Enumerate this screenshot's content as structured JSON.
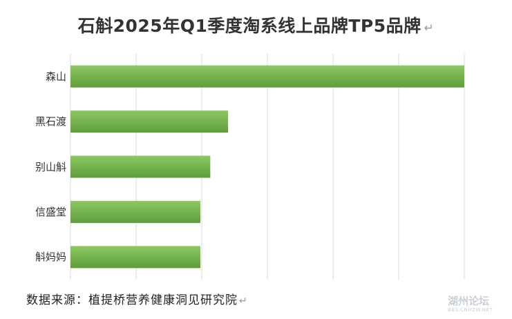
{
  "chart_data": {
    "type": "bar",
    "orientation": "horizontal",
    "title": "石斛2025年Q1季度淘系线上品牌TP5品牌",
    "categories": [
      "森山",
      "黑石渡",
      "别山斛",
      "信盛堂",
      "斛妈妈"
    ],
    "values": [
      100,
      40,
      35.5,
      33,
      33
    ],
    "xlim": [
      0,
      100
    ],
    "grid": true,
    "legend": "none",
    "bar_color": "#70ad47",
    "bar_gradient": [
      "#8cc963",
      "#5f9d3a"
    ],
    "grid_color": "#d9d9d9"
  },
  "source": "数据来源：植提桥营养健康洞见研究院",
  "return_glyph": "↵",
  "watermark": {
    "text": "湖州论坛",
    "sub": "BBS.CNHZW.NET"
  }
}
